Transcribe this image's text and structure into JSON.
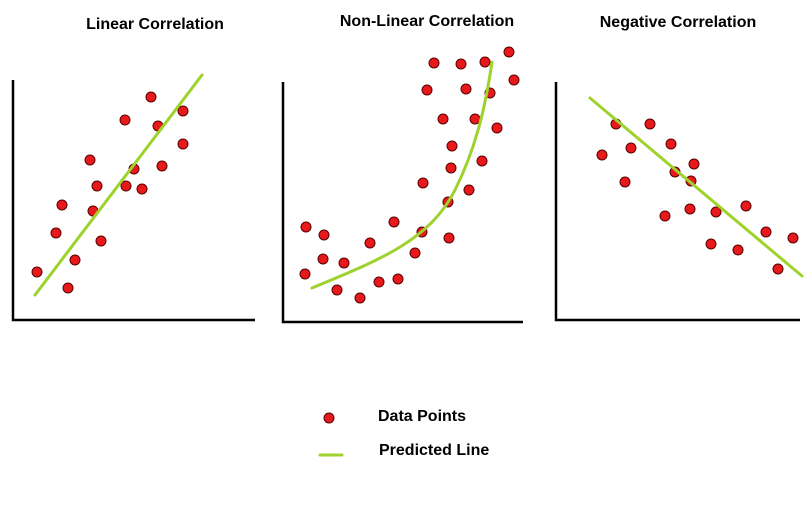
{
  "panels": [
    {
      "title": "Linear Correlation"
    },
    {
      "title": "Non-Linear Correlation"
    },
    {
      "title": "Negative Correlation"
    }
  ],
  "legend": {
    "points": "Data Points",
    "line": "Predicted Line"
  }
}
